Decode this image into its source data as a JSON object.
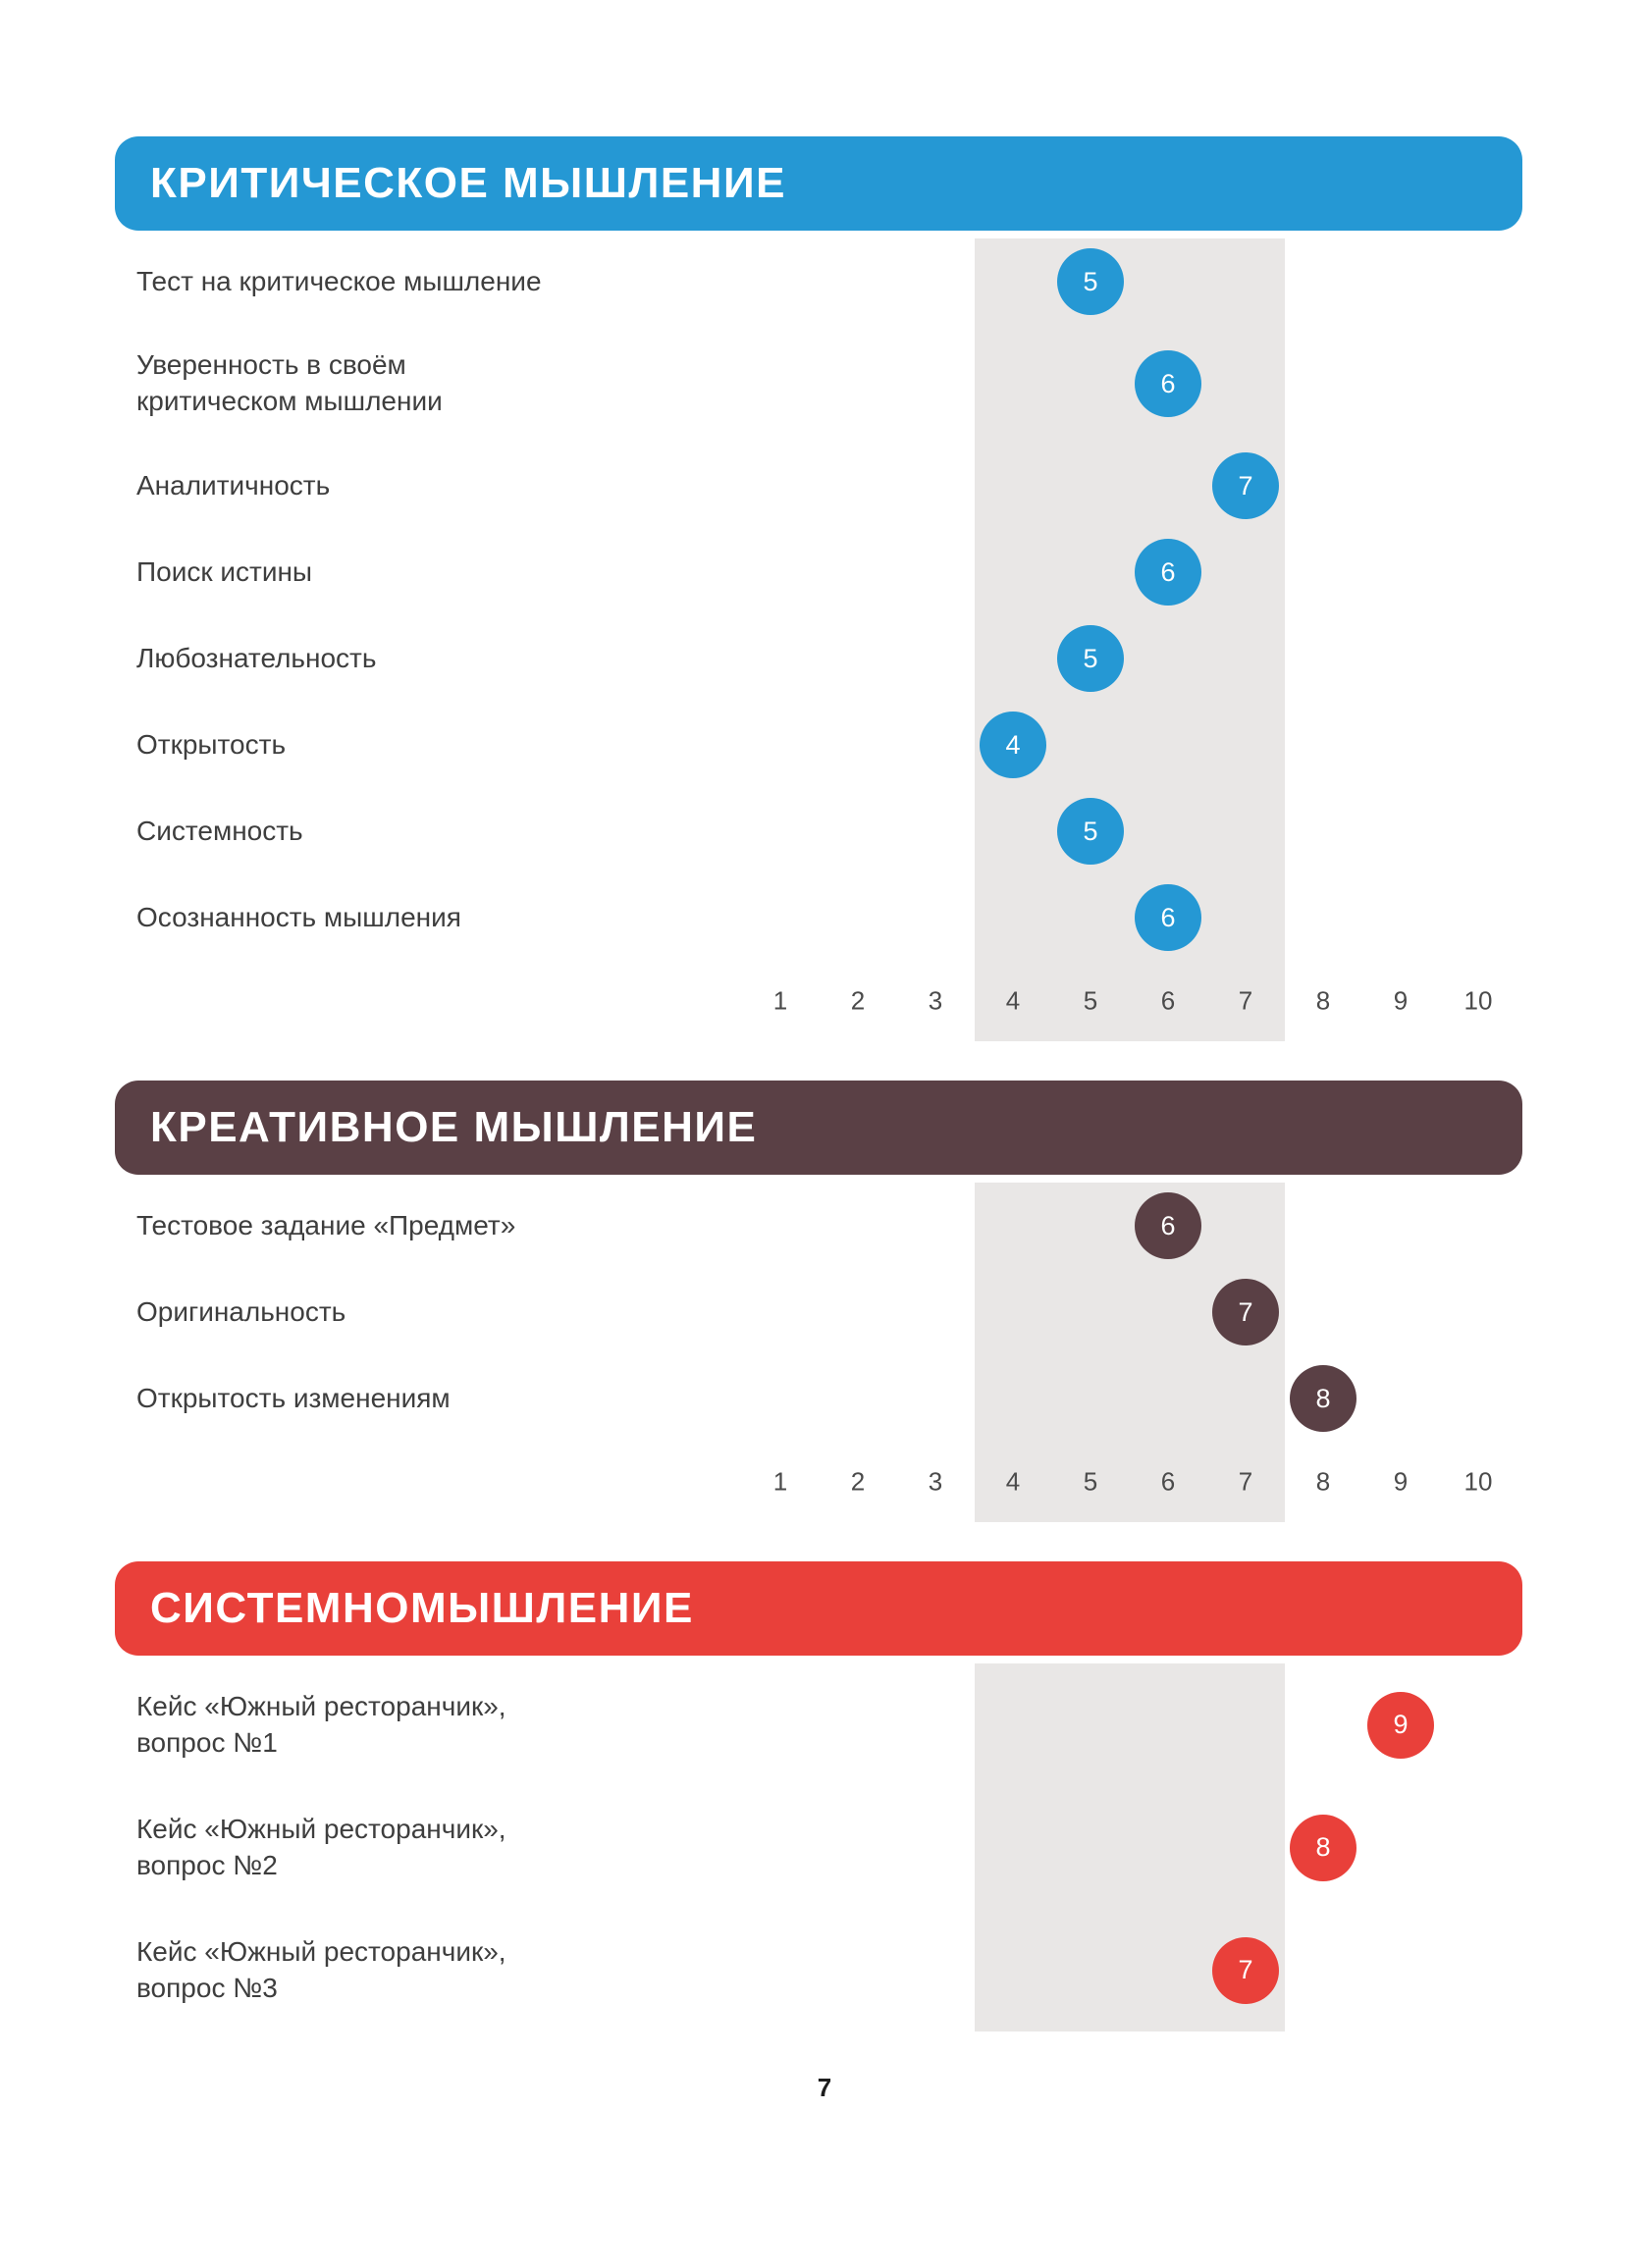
{
  "page": {
    "number": "7",
    "background": "#ffffff"
  },
  "colors": {
    "band": "#e9e7e6",
    "page_background": "#ffffff",
    "dot_number_text": "#ffffff",
    "label_text": "#3e3e3e"
  },
  "axis": {
    "min": 1,
    "max": 10,
    "ticks": [
      "1",
      "2",
      "3",
      "4",
      "5",
      "6",
      "7",
      "8",
      "9",
      "10"
    ],
    "highlight_band_range": [
      3.5,
      7.5
    ]
  },
  "sections": [
    {
      "id": "critical-thinking",
      "title": "КРИТИЧЕСКОЕ МЫШЛЕНИЕ",
      "color": "#2598d4",
      "show_axis": true,
      "rows": [
        {
          "label": "Тест на критическое мышление",
          "value": 5
        },
        {
          "label": "Уверенность в своём\nкритическом мышлении",
          "value": 6
        },
        {
          "label": "Аналитичность",
          "value": 7
        },
        {
          "label": "Поиск истины",
          "value": 6
        },
        {
          "label": "Любознательность",
          "value": 5
        },
        {
          "label": "Открытость",
          "value": 4
        },
        {
          "label": "Системность",
          "value": 5
        },
        {
          "label": "Осознанность мышления",
          "value": 6
        }
      ]
    },
    {
      "id": "creative-thinking",
      "title": "КРЕАТИВНОЕ МЫШЛЕНИЕ",
      "color": "#5a4045",
      "show_axis": true,
      "rows": [
        {
          "label": "Тестовое задание «Предмет»",
          "value": 6
        },
        {
          "label": "Оригинальность",
          "value": 7
        },
        {
          "label": "Открытость изменениям",
          "value": 8
        }
      ]
    },
    {
      "id": "systems-thinking",
      "title": "СИСТЕМНОМЫШЛЕНИЕ",
      "color": "#e9403a",
      "show_axis": false,
      "rows": [
        {
          "label": "Кейс «Южный ресторанчик»,\nвопрос №1",
          "value": 9
        },
        {
          "label": "Кейс «Южный ресторанчик»,\nвопрос №2",
          "value": 8
        },
        {
          "label": "Кейс «Южный ресторанчик»,\nвопрос №3",
          "value": 7
        }
      ]
    }
  ],
  "chart_data": [
    {
      "type": "scatter",
      "title": "КРИТИЧЕСКОЕ МЫШЛЕНИЕ",
      "categories": [
        "Тест на критическое мышление",
        "Уверенность в своём критическом мышлении",
        "Аналитичность",
        "Поиск истины",
        "Любознательность",
        "Открытость",
        "Системность",
        "Осознанность мышления"
      ],
      "values": [
        5,
        6,
        7,
        6,
        5,
        4,
        5,
        6
      ],
      "xlabel": "",
      "ylabel": "",
      "xlim": [
        1,
        10
      ],
      "x_ticks": [
        1,
        2,
        3,
        4,
        5,
        6,
        7,
        8,
        9,
        10
      ],
      "highlight_band_x": [
        3.5,
        7.5
      ],
      "marker_color": "#2598d4",
      "grid": false,
      "legend": "none"
    },
    {
      "type": "scatter",
      "title": "КРЕАТИВНОЕ МЫШЛЕНИЕ",
      "categories": [
        "Тестовое задание «Предмет»",
        "Оригинальность",
        "Открытость изменениям"
      ],
      "values": [
        6,
        7,
        8
      ],
      "xlabel": "",
      "ylabel": "",
      "xlim": [
        1,
        10
      ],
      "x_ticks": [
        1,
        2,
        3,
        4,
        5,
        6,
        7,
        8,
        9,
        10
      ],
      "highlight_band_x": [
        3.5,
        7.5
      ],
      "marker_color": "#5a4045",
      "grid": false,
      "legend": "none"
    },
    {
      "type": "scatter",
      "title": "СИСТЕМНОМЫШЛЕНИЕ",
      "categories": [
        "Кейс «Южный ресторанчик», вопрос №1",
        "Кейс «Южный ресторанчик», вопрос №2",
        "Кейс «Южный ресторанчик», вопрос №3"
      ],
      "values": [
        9,
        8,
        7
      ],
      "xlabel": "",
      "ylabel": "",
      "xlim": [
        1,
        10
      ],
      "x_ticks": [],
      "highlight_band_x": [
        3.5,
        7.5
      ],
      "marker_color": "#e9403a",
      "grid": false,
      "legend": "none"
    }
  ]
}
